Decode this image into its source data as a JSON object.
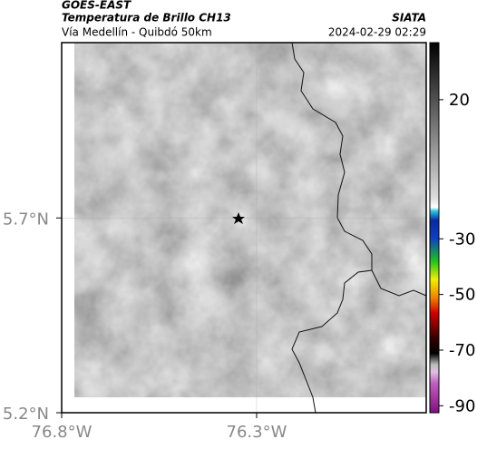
{
  "header": {
    "title": "GOES-EAST",
    "subtitle": "Temperatura de Brillo CH13",
    "source": "SIATA",
    "location": "Vía Medellín - Quibdó 50km",
    "datetime": "2024-02-29 02:29"
  },
  "map": {
    "lonlim": [
      -76.8,
      -75.865
    ],
    "latlim": [
      5.2,
      6.15
    ],
    "lat_ticks": [
      {
        "value": 5.7,
        "label": "5.7°N"
      },
      {
        "value": 5.2,
        "label": "5.2°N"
      }
    ],
    "lon_ticks": [
      {
        "value": -76.8,
        "label": "76.8°W"
      },
      {
        "value": -76.3,
        "label": "76.3°W"
      }
    ]
  },
  "colorbar": {
    "lim": [
      40.5,
      -92.5
    ],
    "ticks": [
      20,
      -30,
      -50,
      -70,
      -90
    ]
  }
}
